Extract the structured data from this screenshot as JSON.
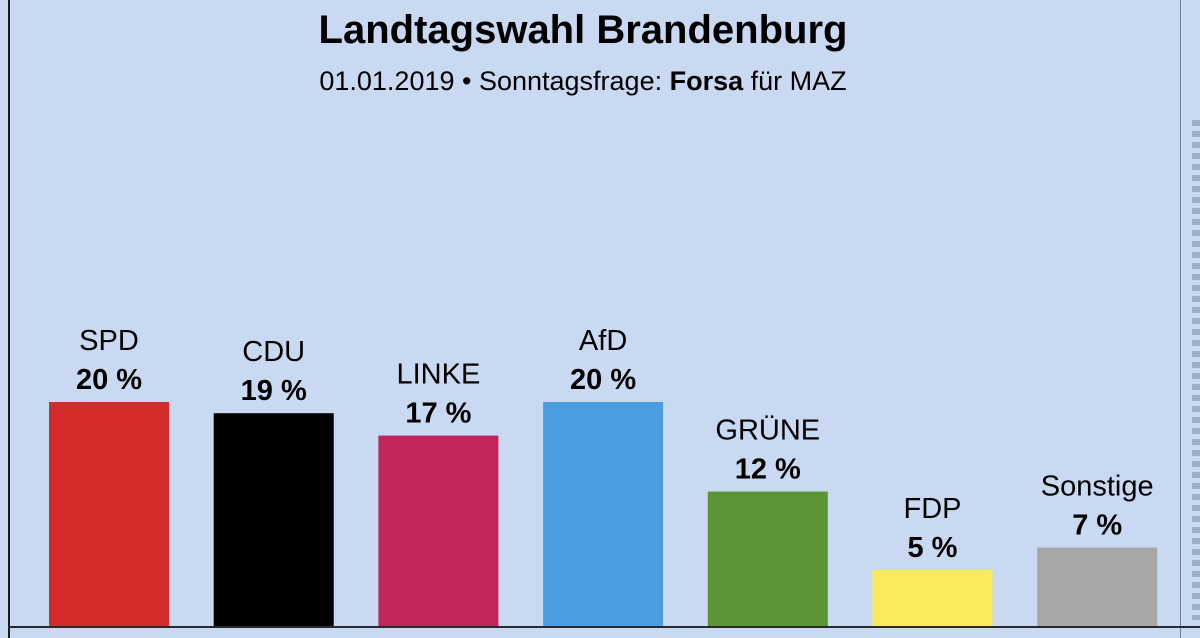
{
  "header": {
    "title": "Landtagswahl Brandenburg",
    "subtitle_prefix": "01.01.2019 • Sonntagsfrage: ",
    "subtitle_institute": "Forsa",
    "subtitle_suffix": " für MAZ"
  },
  "chart_data": {
    "type": "bar",
    "title": "Landtagswahl Brandenburg",
    "subtitle": "01.01.2019 • Sonntagsfrage: Forsa für MAZ",
    "categories": [
      "SPD",
      "CDU",
      "LINKE",
      "AfD",
      "GRÜNE",
      "FDP",
      "Sonstige"
    ],
    "values": [
      20,
      19,
      17,
      20,
      12,
      5,
      7
    ],
    "value_labels": [
      "20 %",
      "19 %",
      "17 %",
      "20 %",
      "12 %",
      "5 %",
      "7 %"
    ],
    "colors": [
      "#d42b2b",
      "#000000",
      "#c2255c",
      "#4a9ee0",
      "#5a9435",
      "#fbeb5b",
      "#a8a6a6"
    ],
    "ylim": [
      0,
      20
    ],
    "grid": false,
    "legend": "none"
  }
}
